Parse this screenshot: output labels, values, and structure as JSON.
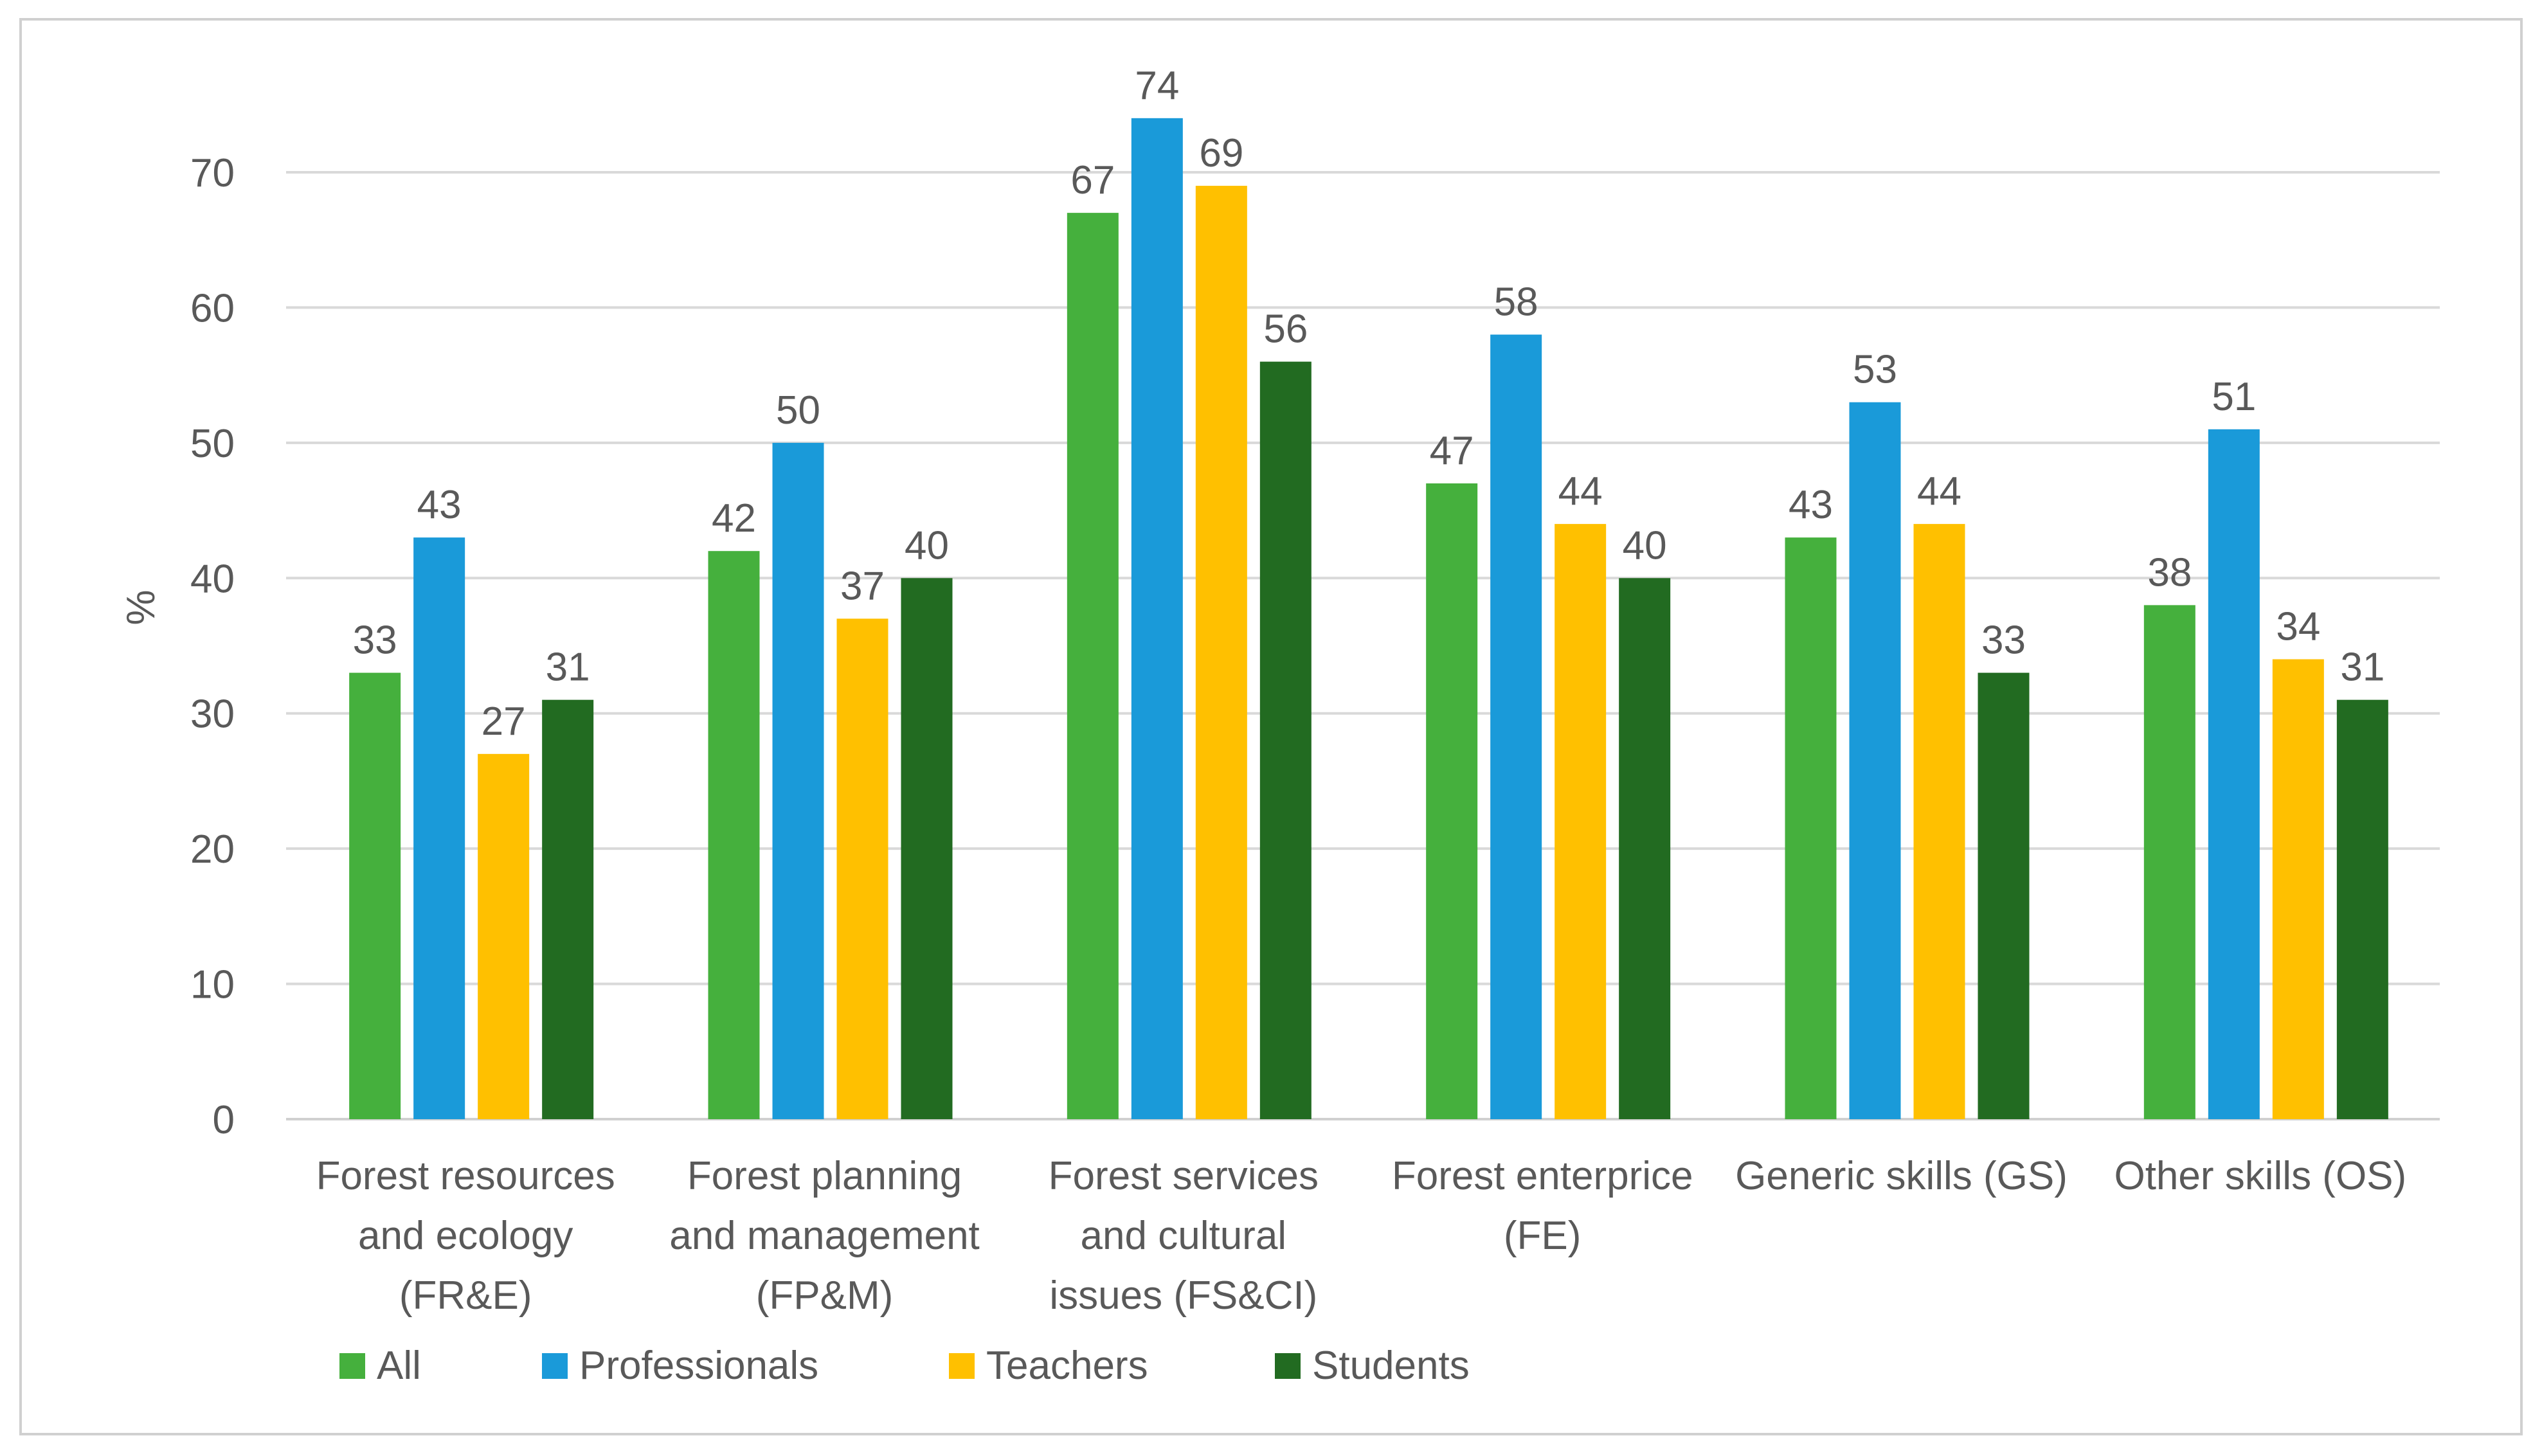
{
  "chart_data": {
    "type": "bar",
    "title": "",
    "xlabel": "",
    "ylabel": "%",
    "ylim": [
      0,
      75
    ],
    "yticks": [
      0,
      10,
      20,
      30,
      40,
      50,
      60,
      70
    ],
    "grid": true,
    "legend_position": "bottom-left",
    "categories": [
      [
        "Forest resources",
        "and ecology",
        "(FR&E)"
      ],
      [
        "Forest planning",
        "and management",
        "(FP&M)"
      ],
      [
        "Forest services",
        "and cultural",
        "issues (FS&CI)"
      ],
      [
        "Forest enterprice",
        "(FE)"
      ],
      [
        "Generic skills (GS)"
      ],
      [
        "Other skills (OS)"
      ]
    ],
    "series": [
      {
        "name": "All",
        "color": "#45b03d",
        "values": [
          33,
          42,
          67,
          47,
          43,
          38
        ]
      },
      {
        "name": "Professionals",
        "color": "#1a9ad9",
        "values": [
          43,
          50,
          74,
          58,
          53,
          51
        ]
      },
      {
        "name": "Teachers",
        "color": "#ffc000",
        "values": [
          27,
          37,
          69,
          44,
          44,
          34
        ]
      },
      {
        "name": "Students",
        "color": "#226b21",
        "values": [
          31,
          40,
          56,
          40,
          33,
          31
        ]
      }
    ]
  }
}
